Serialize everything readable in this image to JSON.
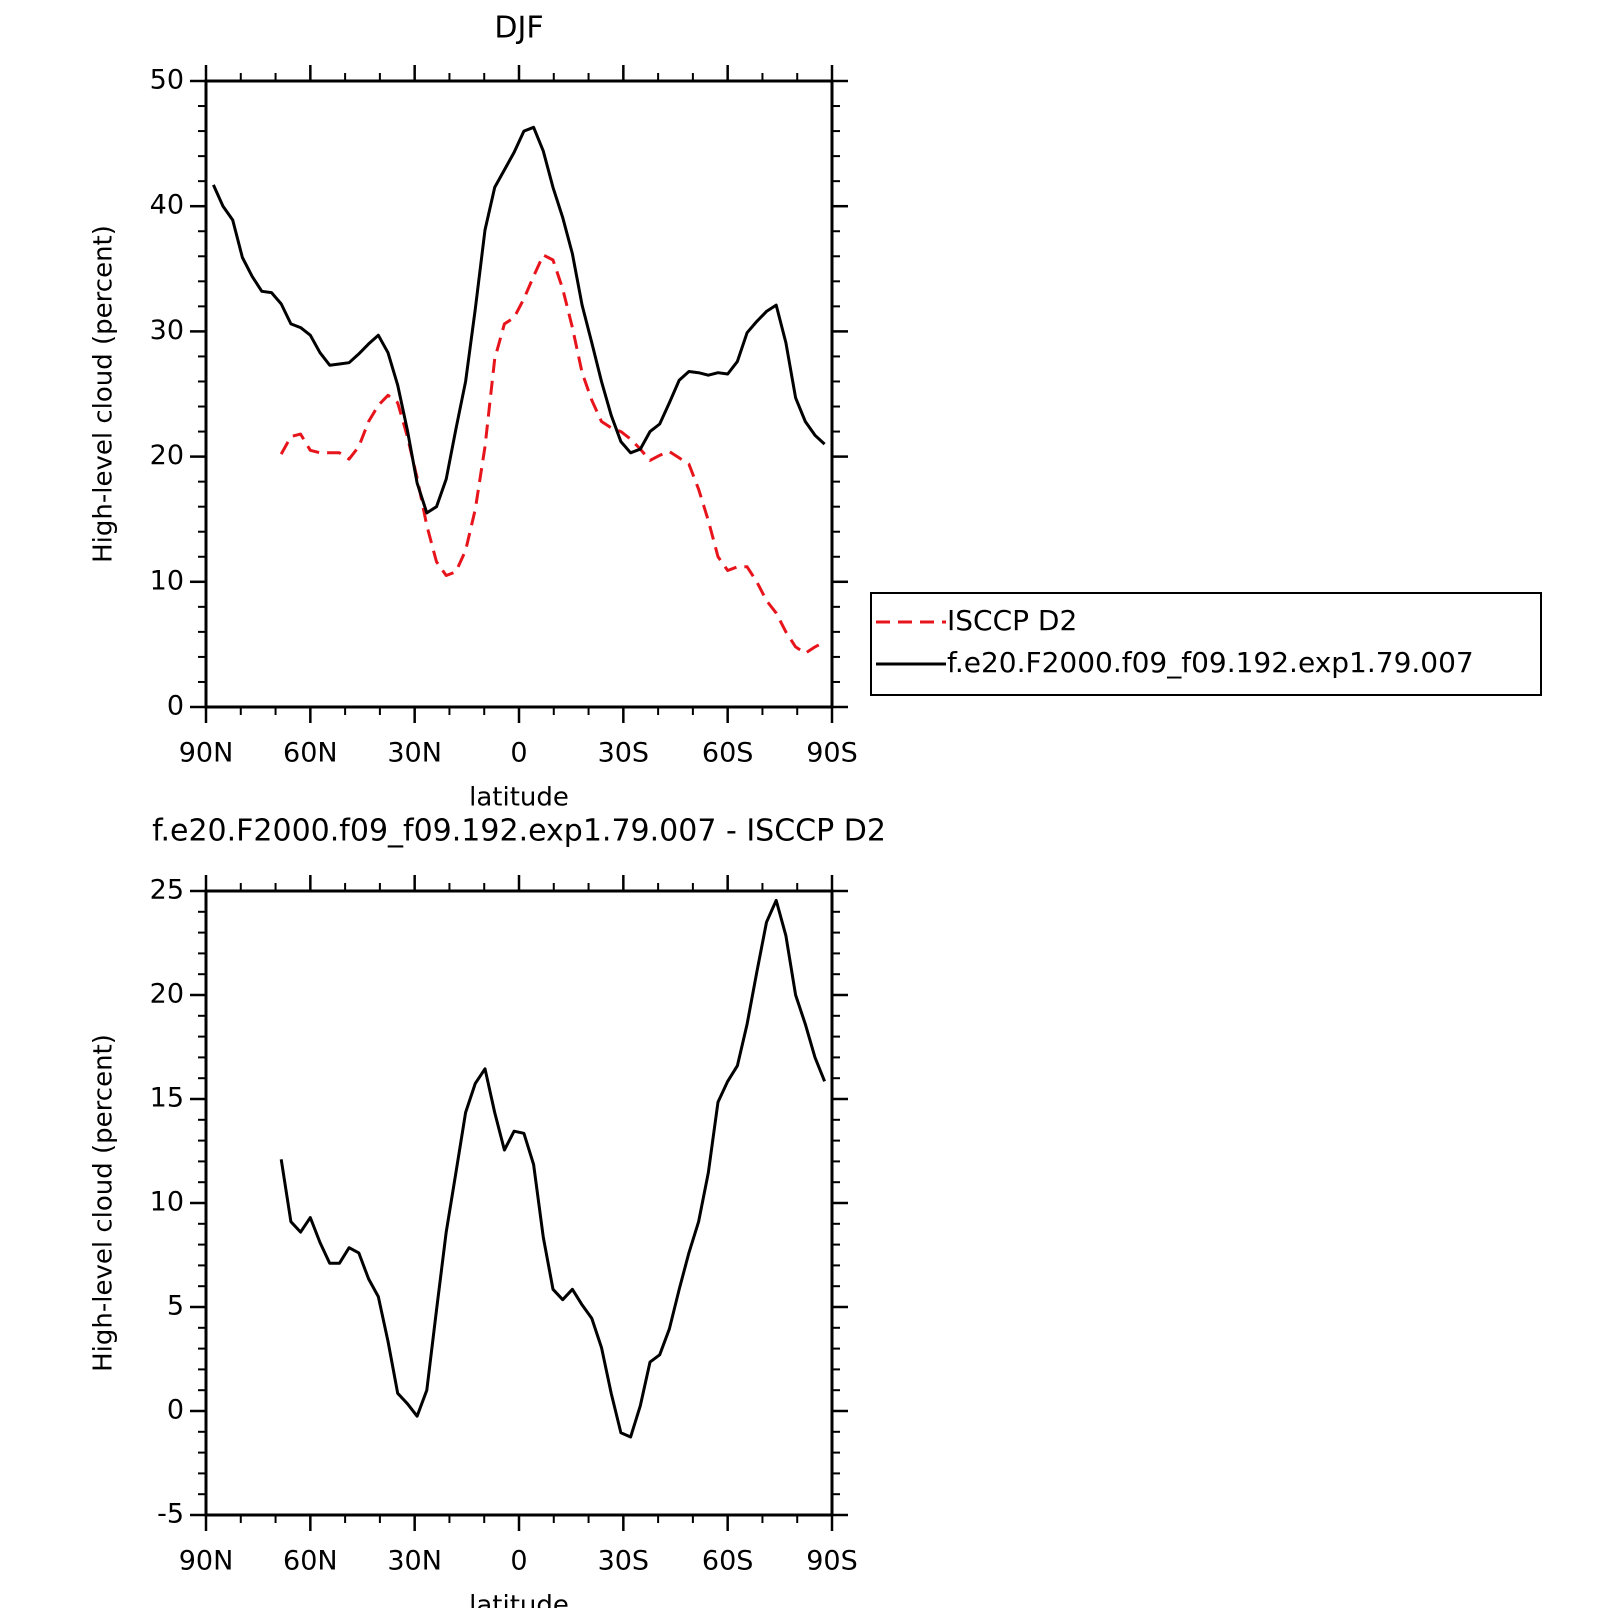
{
  "chart_data": [
    {
      "type": "line",
      "title": "DJF",
      "xlabel": "latitude",
      "ylabel": "High-level cloud (percent)",
      "x": [
        87.86,
        85.1,
        82.31,
        79.53,
        76.74,
        73.95,
        71.16,
        68.37,
        65.58,
        62.79,
        60.0,
        57.21,
        54.42,
        51.63,
        48.84,
        46.05,
        43.26,
        40.47,
        37.67,
        34.88,
        32.09,
        29.3,
        26.51,
        23.72,
        20.93,
        18.14,
        15.35,
        12.56,
        9.77,
        6.98,
        4.19,
        1.4,
        -1.4,
        -4.19,
        -6.98,
        -9.77,
        -12.56,
        -15.35,
        -18.14,
        -20.93,
        -23.72,
        -26.51,
        -29.3,
        -32.09,
        -34.88,
        -37.67,
        -40.47,
        -43.26,
        -46.05,
        -48.84,
        -51.63,
        -54.42,
        -57.21,
        -60.0,
        -62.79,
        -65.58,
        -68.37,
        -71.16,
        -73.95,
        -76.74,
        -79.53,
        -82.31,
        -85.1,
        -87.86
      ],
      "series": [
        {
          "name": "ISCCP D2",
          "color": "#e8141c",
          "style": "dashed",
          "values": [
            null,
            null,
            null,
            null,
            null,
            null,
            null,
            20.2,
            21.6,
            21.8,
            20.5,
            20.3,
            20.3,
            20.3,
            19.8,
            20.8,
            22.8,
            24.1,
            24.9,
            24.3,
            21.6,
            18.3,
            14.5,
            11.6,
            10.5,
            10.8,
            12.5,
            15.8,
            20.8,
            27.8,
            30.6,
            31.1,
            32.6,
            34.4,
            36.1,
            35.7,
            33.4,
            30.3,
            26.7,
            24.5,
            22.8,
            22.3,
            22.0,
            21.4,
            20.6,
            19.7,
            20.1,
            20.4,
            19.9,
            19.4,
            17.4,
            14.9,
            12.0,
            10.9,
            11.2,
            11.2,
            10.0,
            8.5,
            7.5,
            6.0,
            4.8,
            4.3,
            4.8,
            5.2
          ]
        },
        {
          "name": "f.e20.F2000.f09_f09.192.exp1.79.007",
          "color": "#000000",
          "style": "solid",
          "values": [
            41.7,
            40.0,
            38.9,
            35.9,
            34.4,
            33.2,
            33.1,
            32.2,
            30.6,
            30.3,
            29.7,
            28.3,
            27.3,
            27.4,
            27.5,
            28.2,
            29.0,
            29.7,
            28.3,
            25.7,
            22.1,
            17.9,
            15.5,
            16.0,
            18.2,
            22.2,
            26.0,
            31.8,
            38.1,
            41.5,
            42.9,
            44.3,
            46.0,
            46.3,
            44.4,
            41.5,
            39.1,
            36.2,
            32.1,
            29.1,
            26.0,
            23.3,
            21.2,
            20.3,
            20.6,
            22.0,
            22.6,
            24.3,
            26.1,
            26.8,
            26.7,
            26.5,
            26.7,
            26.6,
            27.6,
            29.9,
            30.8,
            31.6,
            32.1,
            29.1,
            24.7,
            22.8,
            21.7,
            21.0
          ]
        }
      ],
      "xlim": [
        90,
        -90
      ],
      "xticks": [
        {
          "value": 90,
          "label": "90N"
        },
        {
          "value": 60,
          "label": "60N"
        },
        {
          "value": 30,
          "label": "30N"
        },
        0,
        {
          "value": -30,
          "label": "30S"
        },
        {
          "value": -60,
          "label": "60S"
        },
        {
          "value": -90,
          "label": "90S"
        }
      ],
      "ylim": [
        0,
        50
      ],
      "yticks": [
        0,
        10,
        20,
        30,
        40,
        50
      ],
      "legend": "right"
    },
    {
      "type": "line",
      "title": "f.e20.F2000.f09_f09.192.exp1.79.007 - ISCCP D2",
      "xlabel": "latitude",
      "ylabel": "High-level cloud (percent)",
      "x": [
        87.86,
        85.1,
        82.31,
        79.53,
        76.74,
        73.95,
        71.16,
        68.37,
        65.58,
        62.79,
        60.0,
        57.21,
        54.42,
        51.63,
        48.84,
        46.05,
        43.26,
        40.47,
        37.67,
        34.88,
        32.09,
        29.3,
        26.51,
        23.72,
        20.93,
        18.14,
        15.35,
        12.56,
        9.77,
        6.98,
        4.19,
        1.4,
        -1.4,
        -4.19,
        -6.98,
        -9.77,
        -12.56,
        -15.35,
        -18.14,
        -20.93,
        -23.72,
        -26.51,
        -29.3,
        -32.09,
        -34.88,
        -37.67,
        -40.47,
        -43.26,
        -46.05,
        -48.84,
        -51.63,
        -54.42,
        -57.21,
        -60.0,
        -62.79,
        -65.58,
        -68.37,
        -71.16,
        -73.95,
        -76.74,
        -79.53,
        -82.31,
        -85.1,
        -87.86
      ],
      "color": "#000000",
      "values": [
        null,
        null,
        null,
        null,
        null,
        null,
        null,
        12.1,
        9.1,
        8.6,
        9.3,
        8.1,
        7.1,
        7.1,
        7.85,
        7.6,
        6.35,
        5.5,
        3.35,
        0.85,
        0.35,
        -0.25,
        1.0,
        4.85,
        8.6,
        11.45,
        14.35,
        15.75,
        16.45,
        14.35,
        12.55,
        13.45,
        13.35,
        11.85,
        8.35,
        5.85,
        5.35,
        5.85,
        5.1,
        4.45,
        3.05,
        0.85,
        -1.05,
        -1.25,
        0.25,
        2.35,
        2.7,
        3.95,
        5.85,
        7.6,
        9.1,
        11.45,
        14.85,
        15.85,
        16.6,
        18.6,
        21.1,
        23.5,
        24.55,
        22.85,
        20.0,
        18.6,
        17.0,
        15.85
      ],
      "xlim": [
        90,
        -90
      ],
      "xticks": [
        {
          "value": 90,
          "label": "90N"
        },
        {
          "value": 60,
          "label": "60N"
        },
        {
          "value": 30,
          "label": "30N"
        },
        0,
        {
          "value": -30,
          "label": "30S"
        },
        {
          "value": -60,
          "label": "60S"
        },
        {
          "value": -90,
          "label": "90S"
        }
      ],
      "ylim": [
        -5,
        25
      ],
      "yticks": [
        -5,
        0,
        5,
        10,
        15,
        20,
        25
      ]
    }
  ]
}
